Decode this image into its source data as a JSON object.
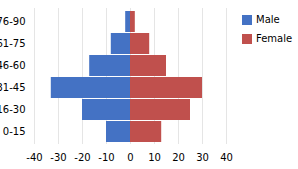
{
  "chart_data": {
    "type": "bar",
    "orientation": "horizontal",
    "categories": [
      "0-15",
      "16-30",
      "31-45",
      "46-60",
      "61-75",
      "76-90"
    ],
    "series": [
      {
        "name": "Male",
        "color": "#4472C4",
        "values": [
          -10,
          -20,
          -33,
          -17,
          -8,
          -2
        ]
      },
      {
        "name": "Female",
        "color": "#C0504D",
        "values": [
          13,
          25,
          30,
          15,
          8,
          2
        ]
      }
    ],
    "xlim": [
      -40,
      40
    ],
    "xticks": [
      -40,
      -30,
      -20,
      -10,
      0,
      10,
      20,
      30,
      40
    ],
    "grid": true,
    "legend": "upper right"
  }
}
